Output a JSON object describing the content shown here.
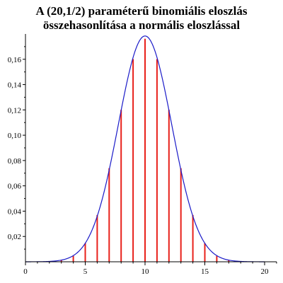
{
  "chart_data": {
    "type": "bar",
    "title_line1": "A (20,1/2) paraméterű binomiális eloszlás",
    "title_line2": "összehasonlítása a normális eloszlással",
    "xlabel": "",
    "ylabel": "",
    "xlim": [
      0,
      21
    ],
    "ylim": [
      0,
      0.18
    ],
    "x_ticks": [
      0,
      5,
      10,
      15,
      20
    ],
    "x_tick_labels": [
      "0",
      "5",
      "10",
      "15",
      "20"
    ],
    "y_ticks": [
      0.02,
      0.04,
      0.06,
      0.08,
      0.1,
      0.12,
      0.14,
      0.16
    ],
    "y_tick_labels": [
      "0,02",
      "0,04",
      "0,06",
      "0,08",
      "0,10",
      "0,12",
      "0,14",
      "0,16"
    ],
    "series": [
      {
        "type": "stem",
        "x": [
          0,
          1,
          2,
          3,
          4,
          5,
          6,
          7,
          8,
          9,
          10,
          11,
          12,
          13,
          14,
          15,
          16,
          17,
          18,
          19,
          20
        ],
        "values": [
          1e-06,
          1.9e-05,
          0.000181,
          0.001087,
          0.004621,
          0.014786,
          0.036964,
          0.073929,
          0.120134,
          0.160179,
          0.176197,
          0.160179,
          0.120134,
          0.073929,
          0.036964,
          0.014786,
          0.004621,
          0.001087,
          0.000181,
          1.9e-05,
          1e-06
        ],
        "color": "#e8201a"
      },
      {
        "type": "line",
        "mean": 10,
        "sd": 2.236068,
        "x_range": [
          0,
          20
        ],
        "color": "#1a1ac8"
      }
    ],
    "grid": false,
    "axis_color": "#000000"
  }
}
